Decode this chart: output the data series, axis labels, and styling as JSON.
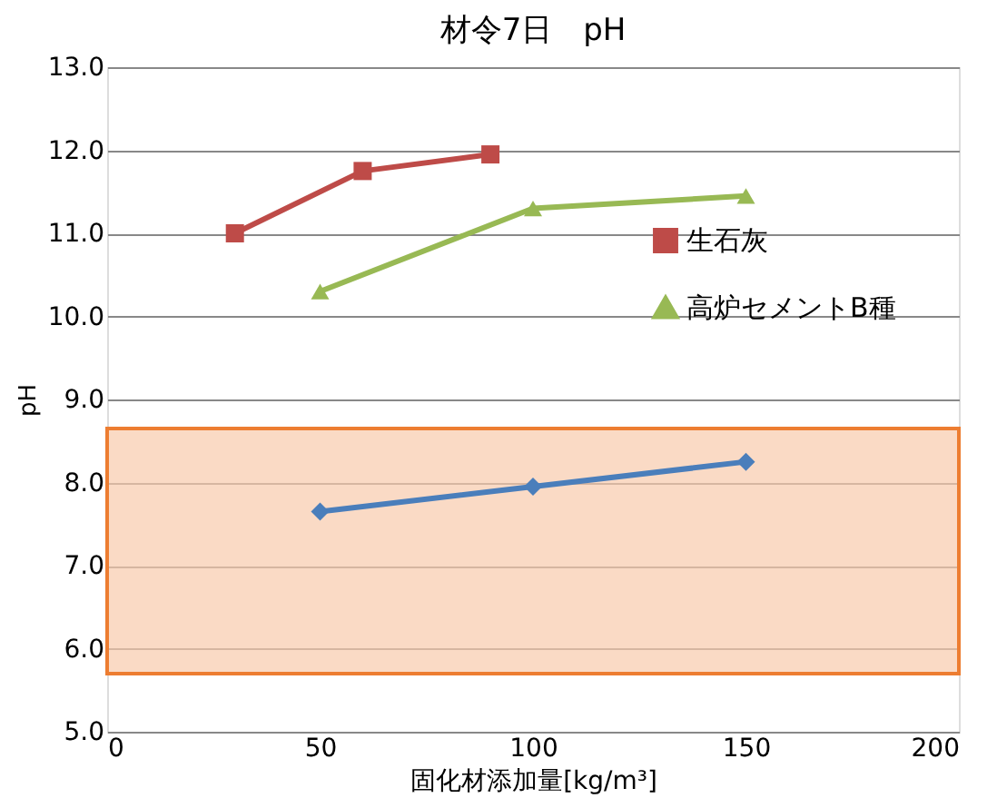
{
  "chart_data": {
    "type": "line",
    "title": "材令7日　pH",
    "xlabel": "固化材添加量[kg/m³]",
    "ylabel": "pH",
    "xlim": [
      0,
      200
    ],
    "xticks": [
      0,
      50,
      100,
      150,
      200
    ],
    "ylim": [
      5.0,
      13.0
    ],
    "yticks": [
      {
        "value": 5,
        "label": "5.0"
      },
      {
        "value": 6,
        "label": "6.0"
      },
      {
        "value": 7,
        "label": "7.0"
      },
      {
        "value": 8,
        "label": "8.0"
      },
      {
        "value": 9,
        "label": "9.0"
      },
      {
        "value": 10,
        "label": "10.0"
      },
      {
        "value": 11,
        "label": "11.0"
      },
      {
        "value": 12,
        "label": "12.0"
      },
      {
        "value": 13,
        "label": "13.0"
      }
    ],
    "grid": "y",
    "legend": "right",
    "series": [
      {
        "color": "#4a7ebb",
        "marker": "diamond",
        "x": [
          50,
          100,
          150
        ],
        "values": [
          7.65,
          7.95,
          8.25
        ]
      },
      {
        "name": "生石灰",
        "color": "#be4b48",
        "marker": "square",
        "x": [
          30,
          60,
          90
        ],
        "values": [
          11.0,
          11.75,
          11.95
        ]
      },
      {
        "name": "高炉セメントB種",
        "color": "#98b954",
        "marker": "triangle",
        "x": [
          50,
          100,
          150
        ],
        "values": [
          10.3,
          11.3,
          11.45
        ]
      }
    ],
    "bands": [
      {
        "axis": "y",
        "from": 5.7,
        "to": 8.65,
        "color": "#f8cbad"
      }
    ]
  }
}
